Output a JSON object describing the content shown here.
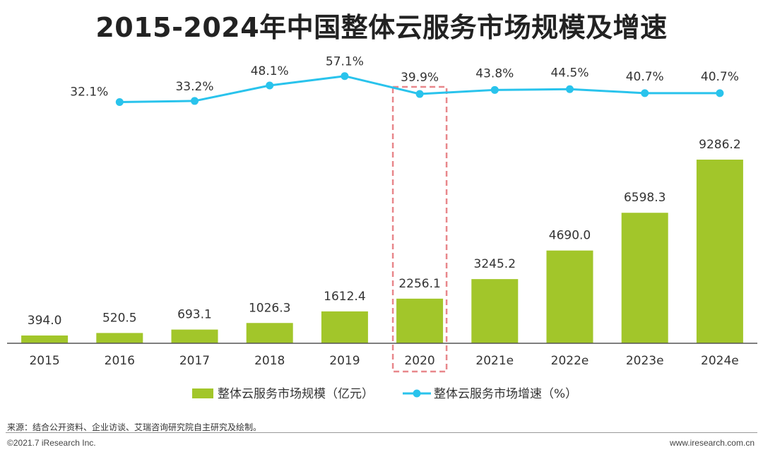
{
  "page": {
    "source": "来源：结合公开资料、企业访谈、艾瑞咨询研究院自主研究及绘制。",
    "copyright": "©2021.7 iResearch Inc.",
    "website": "www.iresearch.com.cn"
  },
  "chart_data": {
    "type": "bar+line",
    "title": "2015-2024年中国整体云服务市场规模及增速",
    "categories": [
      "2015",
      "2016",
      "2017",
      "2018",
      "2019",
      "2020",
      "2021e",
      "2022e",
      "2023e",
      "2024e"
    ],
    "series": [
      {
        "name": "整体云服务市场规模（亿元）",
        "type": "bar",
        "values": [
          394.0,
          520.5,
          693.1,
          1026.3,
          1612.4,
          2256.1,
          3245.2,
          4690.0,
          6598.3,
          9286.2
        ],
        "labels": [
          "394.0",
          "520.5",
          "693.1",
          "1026.3",
          "1612.4",
          "2256.1",
          "3245.2",
          "4690.0",
          "6598.3",
          "9286.2"
        ]
      },
      {
        "name": "整体云服务市场增速（%）",
        "type": "line",
        "values": [
          null,
          32.1,
          33.2,
          48.1,
          57.1,
          39.9,
          43.8,
          44.5,
          40.7,
          40.7
        ],
        "labels": [
          "",
          "32.1%",
          "33.2%",
          "48.1%",
          "57.1%",
          "39.9%",
          "43.8%",
          "44.5%",
          "40.7%",
          "40.7%"
        ]
      }
    ],
    "highlight_category": "2020",
    "bar_ylim": [
      0,
      12000
    ],
    "line_ylim": [
      -140,
      80
    ],
    "colors": {
      "bar": "#A2C62A",
      "line": "#29C3EC",
      "highlight_box": "#E8878B",
      "axis": "#555555",
      "text": "#333333"
    }
  }
}
